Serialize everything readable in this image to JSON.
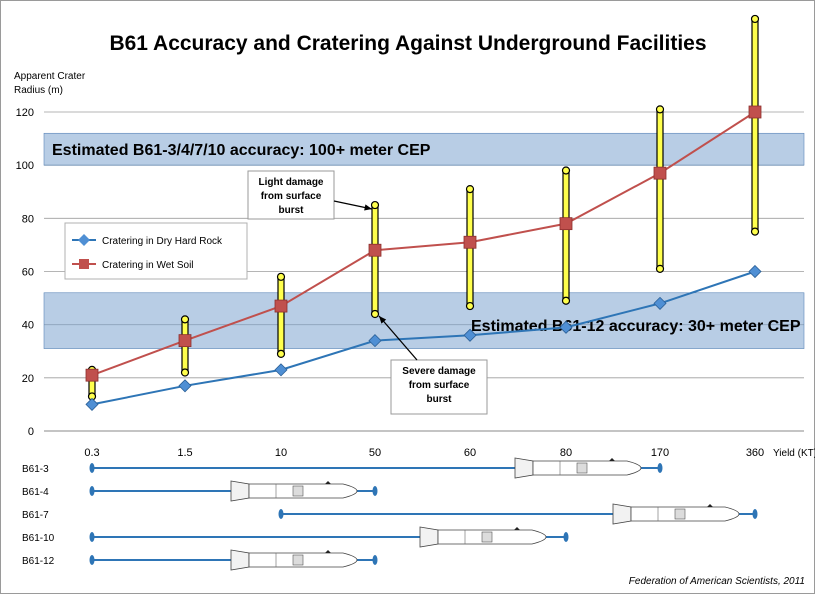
{
  "title": "B61 Accuracy and Cratering Against Underground Facilities",
  "credit": "Federation of American Scientists, 2011",
  "colors": {
    "dry_rock": "#2e75b6",
    "dry_rock_marker": "#4f8fd4",
    "wet_soil": "#c0504d",
    "wet_soil_marker": "#c0504d",
    "error_bar": "#ffff4d",
    "error_bar_outline": "#000000",
    "band": "#7da4cf",
    "weapon_line": "#2e75b6"
  },
  "chart_data": {
    "type": "line",
    "title": "B61 Accuracy and Cratering Against Underground Facilities",
    "ylabel": "Apparent Crater Radius (m)",
    "xlabel": "Yield (KT)",
    "ylim": [
      0,
      120
    ],
    "yticks": [
      0,
      20,
      40,
      60,
      80,
      100,
      120
    ],
    "categories": [
      "0.3",
      "1.5",
      "10",
      "50",
      "60",
      "80",
      "170",
      "360"
    ],
    "series": [
      {
        "name": "Cratering in Dry Hard Rock",
        "values": [
          10,
          17,
          23,
          34,
          36,
          39,
          48,
          60
        ]
      },
      {
        "name": "Cratering in Wet Soil",
        "values": [
          21,
          34,
          47,
          68,
          71,
          78,
          97,
          120
        ]
      }
    ],
    "error_ranges": [
      {
        "category": "0.3",
        "low": 13,
        "high": 23
      },
      {
        "category": "1.5",
        "low": 22,
        "high": 42
      },
      {
        "category": "10",
        "low": 29,
        "high": 58
      },
      {
        "category": "50",
        "low": 44,
        "high": 85
      },
      {
        "category": "60",
        "low": 47,
        "high": 91
      },
      {
        "category": "80",
        "low": 49,
        "high": 98
      },
      {
        "category": "170",
        "low": 61,
        "high": 121
      },
      {
        "category": "360",
        "low": 75,
        "high": 155
      }
    ],
    "bands": [
      {
        "label": "Estimated B61-3/4/7/10 accuracy: 100+ meter CEP",
        "low": 100,
        "high": 112
      },
      {
        "label": "Estimated B61-12 accuracy: 30+ meter CEP",
        "low": 31,
        "high": 52
      }
    ],
    "annotations": [
      {
        "text_lines": [
          "Light damage",
          "from surface",
          "burst"
        ],
        "category": "50",
        "value": 85
      },
      {
        "text_lines": [
          "Severe damage",
          "from surface",
          "burst"
        ],
        "category": "50",
        "value": 44
      }
    ],
    "legend_position": "left-middle",
    "weapons": [
      {
        "label": "B61-3",
        "from": "0.3",
        "to": "170"
      },
      {
        "label": "B61-4",
        "from": "0.3",
        "to": "50"
      },
      {
        "label": "B61-7",
        "from": "10",
        "to": "360"
      },
      {
        "label": "B61-10",
        "from": "0.3",
        "to": "80"
      },
      {
        "label": "B61-12",
        "from": "0.3",
        "to": "50"
      }
    ]
  }
}
